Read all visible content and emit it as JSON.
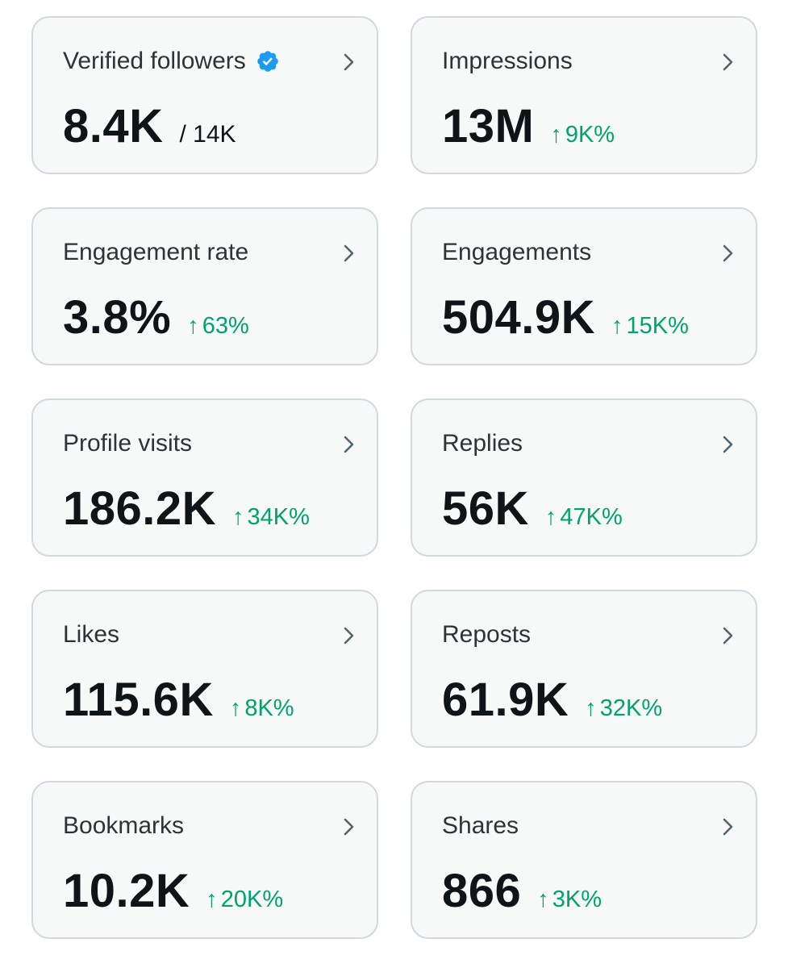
{
  "colors": {
    "card_background": "#f7f9f9",
    "card_border": "#cfd9de",
    "label_text": "#2f3336",
    "value_text": "#0f1419",
    "positive_change": "#00a36c",
    "verified_badge": "#1d9bf0",
    "chevron": "#536471"
  },
  "icons": {
    "verified": "verified-badge-icon",
    "chevron": "chevron-right-icon",
    "arrow": "arrow-up-icon"
  },
  "metrics": [
    {
      "label": "Verified followers",
      "value": "8.4K",
      "sub": "/ 14K"
    },
    {
      "label": "Impressions",
      "value": "13M",
      "change": "9K%"
    },
    {
      "label": "Engagement rate",
      "value": "3.8%",
      "change": "63%"
    },
    {
      "label": "Engagements",
      "value": "504.9K",
      "change": "15K%"
    },
    {
      "label": "Profile visits",
      "value": "186.2K",
      "change": "34K%"
    },
    {
      "label": "Replies",
      "value": "56K",
      "change": "47K%"
    },
    {
      "label": "Likes",
      "value": "115.6K",
      "change": "8K%"
    },
    {
      "label": "Reposts",
      "value": "61.9K",
      "change": "32K%"
    },
    {
      "label": "Bookmarks",
      "value": "10.2K",
      "change": "20K%"
    },
    {
      "label": "Shares",
      "value": "866",
      "change": "3K%"
    }
  ],
  "change_arrow": "↑"
}
